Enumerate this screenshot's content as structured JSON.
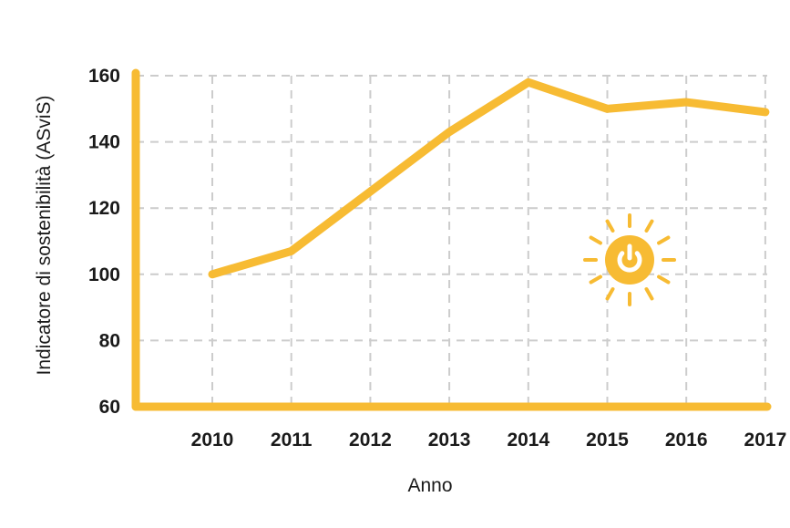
{
  "chart_data": {
    "type": "line",
    "title": "",
    "xlabel": "Anno",
    "ylabel": "Indicatore di sostenibilità (ASviS)",
    "x": [
      "2010",
      "2011",
      "2012",
      "2013",
      "2014",
      "2015",
      "2016",
      "2017"
    ],
    "series": [
      {
        "values": [
          100,
          107,
          125,
          143,
          158,
          150,
          152,
          149
        ]
      }
    ],
    "ylim": [
      60,
      160
    ],
    "yticks": [
      60,
      80,
      100,
      120,
      140,
      160
    ],
    "grid": true,
    "grid_style": "dashed",
    "line_color": "#f7bb33",
    "axis_color": "#f7bb33",
    "icon": "sun-power-icon"
  }
}
